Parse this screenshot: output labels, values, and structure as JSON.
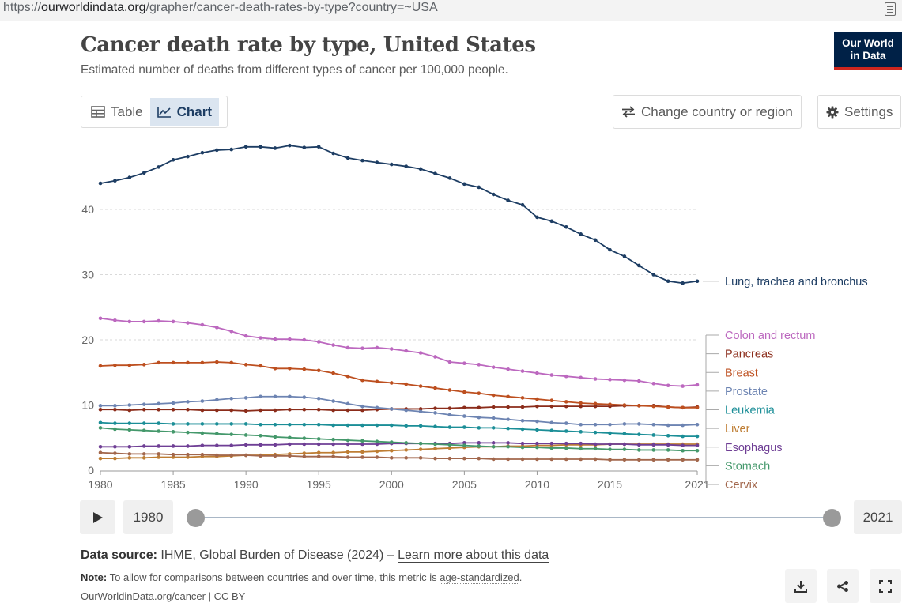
{
  "browser": {
    "url_prefix": "https://",
    "url_domain": "ourworldindata.org",
    "url_path": "/grapher/cancer-death-rates-by-type?country=~USA"
  },
  "header": {
    "title": "Cancer death rate by type, United States",
    "subtitle_before": "Estimated number of deaths from different types of ",
    "subtitle_link": "cancer",
    "subtitle_after": " per 100,000 people.",
    "logo_line1": "Our World",
    "logo_line2": "in Data"
  },
  "tabs": {
    "table": "Table",
    "chart": "Chart"
  },
  "controls": {
    "change_country": "Change country or region",
    "settings": "Settings"
  },
  "colors": {
    "accent": "#1d3d63",
    "logo_bg": "#002147",
    "logo_bar": "#ce261e"
  },
  "chart_data": {
    "type": "line",
    "title": "Cancer death rate by type, United States",
    "xlim": [
      1980,
      2021
    ],
    "ylim": [
      0,
      50
    ],
    "xticks": [
      1980,
      1985,
      1990,
      1995,
      2000,
      2005,
      2010,
      2015,
      2021
    ],
    "yticks": [
      0,
      10,
      20,
      30,
      40
    ],
    "grid": "horizontal dashed",
    "legend": "right, line-end labels",
    "series": [
      {
        "name": "Lung, trachea and bronchus",
        "color": "#1d3d63",
        "values": [
          44,
          44.4,
          44.9,
          45.6,
          46.5,
          47.6,
          48.1,
          48.7,
          49.1,
          49.2,
          49.6,
          49.6,
          49.4,
          49.8,
          49.5,
          49.6,
          48.6,
          47.9,
          47.5,
          47.2,
          46.9,
          46.6,
          46.2,
          45.5,
          44.8,
          43.9,
          43.4,
          42.3,
          41.4,
          40.7,
          38.8,
          38.2,
          37.3,
          36.2,
          35.3,
          33.8,
          32.8,
          31.4,
          30,
          29,
          28.7,
          29
        ]
      },
      {
        "name": "Colon and rectum",
        "color": "#bc68bf",
        "values": [
          23.3,
          23,
          22.8,
          22.8,
          22.9,
          22.8,
          22.6,
          22.3,
          21.9,
          21.3,
          20.6,
          20.3,
          20.1,
          20.1,
          20,
          19.7,
          19.2,
          18.8,
          18.7,
          18.8,
          18.6,
          18.3,
          18,
          17.4,
          16.6,
          16.4,
          16.2,
          15.8,
          15.5,
          15.2,
          14.9,
          14.6,
          14.4,
          14.2,
          14,
          13.9,
          13.8,
          13.7,
          13.3,
          13,
          12.9,
          13.1
        ]
      },
      {
        "name": "Pancreas",
        "color": "#8b2c1a",
        "values": [
          9.3,
          9.3,
          9.2,
          9.3,
          9.3,
          9.3,
          9.3,
          9.2,
          9.2,
          9.2,
          9.1,
          9.2,
          9.2,
          9.3,
          9.3,
          9.3,
          9.2,
          9.2,
          9.2,
          9.3,
          9.4,
          9.4,
          9.4,
          9.5,
          9.5,
          9.6,
          9.6,
          9.7,
          9.7,
          9.7,
          9.8,
          9.8,
          9.8,
          9.8,
          9.8,
          9.8,
          9.9,
          9.9,
          9.9,
          9.7,
          9.6,
          9.7
        ]
      },
      {
        "name": "Breast",
        "color": "#bd4f1f",
        "values": [
          16,
          16.1,
          16.1,
          16.2,
          16.5,
          16.5,
          16.5,
          16.5,
          16.6,
          16.5,
          16.2,
          16,
          15.6,
          15.6,
          15.5,
          15.3,
          14.9,
          14.4,
          13.8,
          13.6,
          13.4,
          13.2,
          12.9,
          12.6,
          12.3,
          12,
          11.8,
          11.5,
          11.3,
          11.1,
          10.9,
          10.7,
          10.5,
          10.3,
          10.2,
          10.1,
          10,
          9.9,
          9.8,
          9.7,
          9.6,
          9.6
        ]
      },
      {
        "name": "Prostate",
        "color": "#6d84b2",
        "values": [
          9.9,
          9.9,
          10,
          10.1,
          10.2,
          10.3,
          10.5,
          10.6,
          10.8,
          11,
          11.1,
          11.3,
          11.3,
          11.3,
          11.2,
          11,
          10.6,
          10.2,
          9.8,
          9.6,
          9.4,
          9.2,
          9,
          8.8,
          8.5,
          8.3,
          8.1,
          8,
          7.8,
          7.6,
          7.5,
          7.3,
          7.2,
          7,
          7,
          7,
          7.1,
          7.1,
          7,
          6.9,
          6.9,
          7
        ]
      },
      {
        "name": "Leukemia",
        "color": "#1b8e97",
        "values": [
          7.3,
          7.2,
          7.2,
          7.2,
          7.2,
          7.1,
          7.1,
          7.1,
          7.1,
          7.1,
          7.1,
          7,
          7,
          7,
          7,
          7,
          6.9,
          6.9,
          6.9,
          6.9,
          6.9,
          6.8,
          6.8,
          6.7,
          6.6,
          6.6,
          6.5,
          6.5,
          6.4,
          6.3,
          6.2,
          6.1,
          6,
          5.9,
          5.8,
          5.7,
          5.6,
          5.5,
          5.4,
          5.3,
          5.2,
          5.2
        ]
      },
      {
        "name": "Liver",
        "color": "#be7d33",
        "values": [
          1.8,
          1.8,
          1.9,
          1.9,
          2,
          2,
          2,
          2.1,
          2.1,
          2.2,
          2.3,
          2.3,
          2.4,
          2.5,
          2.6,
          2.7,
          2.7,
          2.8,
          2.8,
          2.9,
          3,
          3.1,
          3.2,
          3.3,
          3.4,
          3.5,
          3.6,
          3.6,
          3.7,
          3.7,
          3.8,
          3.8,
          3.9,
          3.9,
          3.9,
          4,
          4,
          4,
          4,
          4,
          4,
          4
        ]
      },
      {
        "name": "Esophagus",
        "color": "#6f3f95",
        "values": [
          3.6,
          3.6,
          3.6,
          3.7,
          3.7,
          3.7,
          3.7,
          3.8,
          3.8,
          3.8,
          3.9,
          3.9,
          3.9,
          4,
          4,
          4,
          4,
          4,
          4,
          4,
          4.1,
          4.1,
          4.1,
          4.1,
          4.1,
          4.2,
          4.2,
          4.2,
          4.2,
          4.1,
          4.1,
          4.1,
          4.1,
          4.1,
          4,
          4,
          4,
          3.9,
          3.9,
          3.9,
          3.8,
          3.8
        ]
      },
      {
        "name": "Stomach",
        "color": "#44986b",
        "values": [
          6.5,
          6.3,
          6.2,
          6.1,
          6,
          5.9,
          5.8,
          5.7,
          5.6,
          5.5,
          5.4,
          5.3,
          5.1,
          5,
          4.9,
          4.8,
          4.7,
          4.6,
          4.5,
          4.4,
          4.3,
          4.2,
          4.1,
          4,
          3.9,
          3.8,
          3.7,
          3.6,
          3.6,
          3.5,
          3.5,
          3.4,
          3.4,
          3.3,
          3.3,
          3.2,
          3.2,
          3.1,
          3.1,
          3.1,
          3,
          3
        ]
      },
      {
        "name": "Cervix",
        "color": "#a2674c",
        "values": [
          2.7,
          2.6,
          2.5,
          2.5,
          2.5,
          2.4,
          2.4,
          2.4,
          2.3,
          2.3,
          2.3,
          2.2,
          2.2,
          2.2,
          2.1,
          2.1,
          2.1,
          2,
          2,
          2,
          1.9,
          1.9,
          1.9,
          1.8,
          1.8,
          1.8,
          1.8,
          1.7,
          1.7,
          1.7,
          1.7,
          1.7,
          1.7,
          1.7,
          1.7,
          1.6,
          1.6,
          1.6,
          1.6,
          1.6,
          1.6,
          1.6
        ]
      }
    ]
  },
  "timeline": {
    "start_year": "1980",
    "end_year": "2021"
  },
  "footer": {
    "source_label": "Data source:",
    "source_text": " IHME, Global Burden of Disease (2024) – ",
    "source_link": "Learn more about this data",
    "note_label": "Note:",
    "note_text": " To allow for comparisons between countries and over time, this metric is ",
    "note_link": "age-standardized",
    "note_end": ".",
    "credit": "OurWorldinData.org/cancer | CC BY"
  },
  "icons": {
    "download": "download-icon",
    "share": "share-icon",
    "fullscreen": "fullscreen-icon"
  }
}
